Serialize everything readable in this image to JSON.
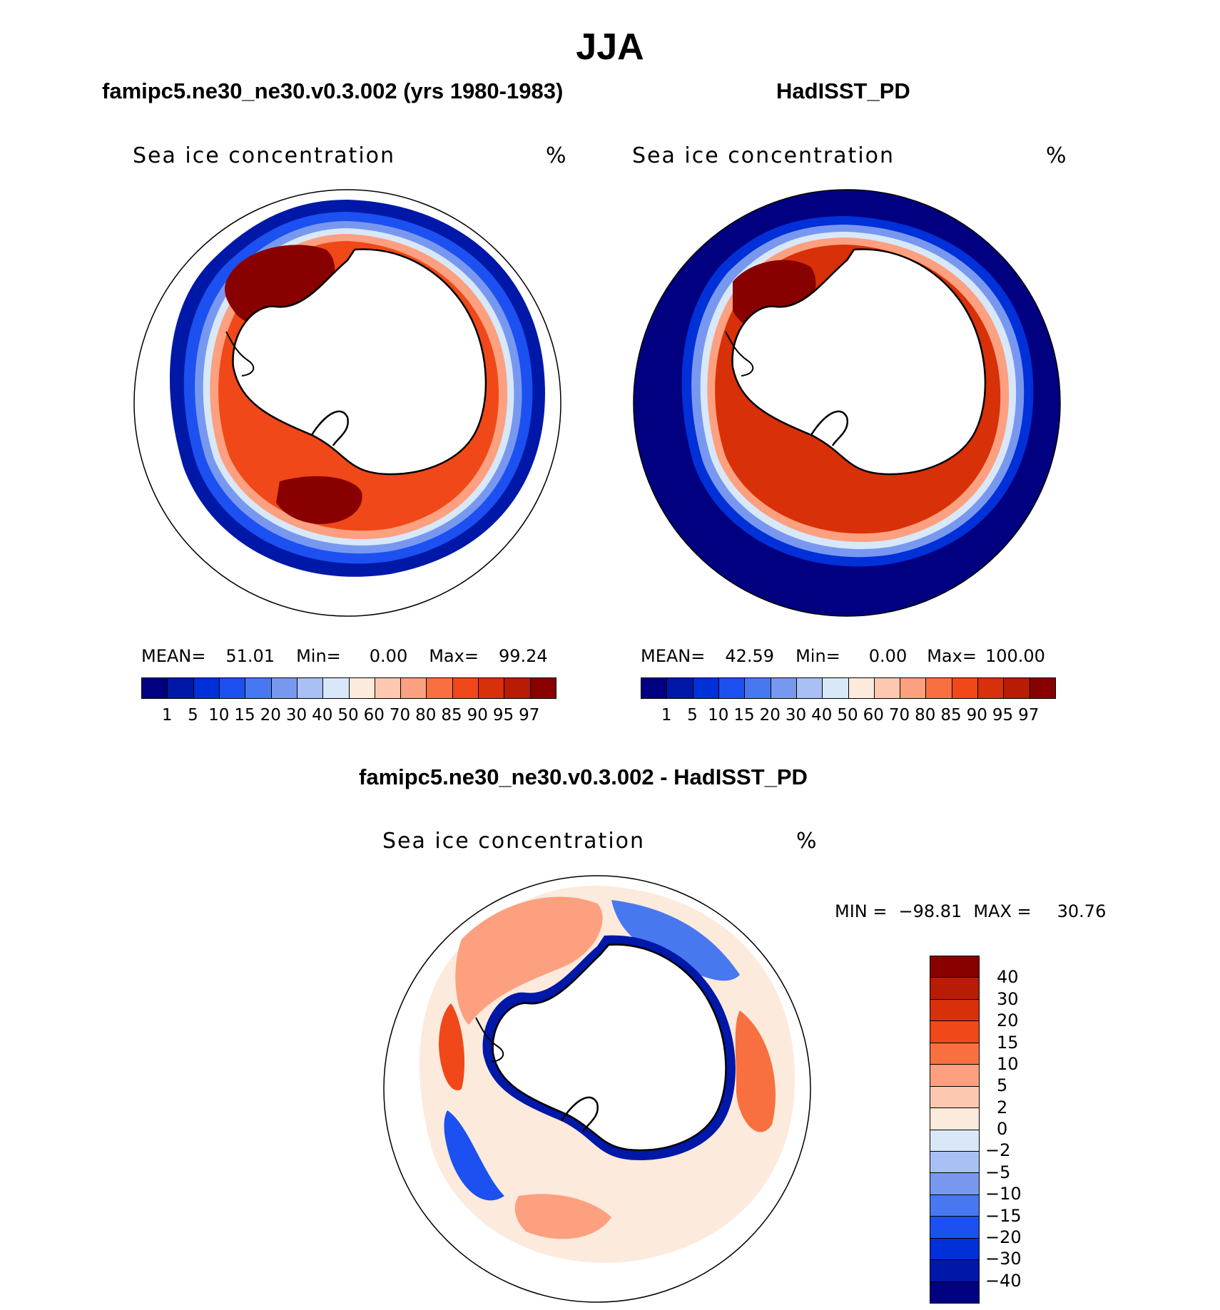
{
  "title": "JJA",
  "top_left": {
    "title": "famipc5.ne30_ne30.v0.3.002 (yrs 1980-1983)",
    "variable": "Sea ice concentration",
    "units": "%",
    "stats": {
      "mean_label": "MEAN=",
      "mean": "51.01",
      "min_label": "Min=",
      "min": "0.00",
      "max_label": "Max=",
      "max": "99.24"
    }
  },
  "top_right": {
    "title": "HadISST_PD",
    "variable": "Sea ice concentration",
    "units": "%",
    "stats": {
      "mean_label": "MEAN=",
      "mean": "42.59",
      "min_label": "Min=",
      "min": "0.00",
      "max_label": "Max=",
      "max": "100.00"
    }
  },
  "bottom": {
    "title": "famipc5.ne30_ne30.v0.3.002 - HadISST_PD",
    "variable": "Sea ice concentration",
    "units": "%",
    "minmax": {
      "min_label": "MIN =",
      "min": "−98.81",
      "max_label": "MAX =",
      "max": "30.76"
    }
  },
  "concentration_scale": {
    "ticks": [
      "1",
      "5",
      "10",
      "15",
      "20",
      "30",
      "40",
      "50",
      "60",
      "70",
      "80",
      "85",
      "90",
      "95",
      "97"
    ],
    "colors": [
      "#000080",
      "#0018a8",
      "#0030d8",
      "#1c50f0",
      "#4878f0",
      "#7898f0",
      "#a8c0f4",
      "#d8e8f8",
      "#fceadc",
      "#fcc8b0",
      "#fca080",
      "#f87040",
      "#f04818",
      "#d83008",
      "#b81c04",
      "#880000"
    ]
  },
  "difference_scale": {
    "ticks": [
      "40",
      "30",
      "20",
      "15",
      "10",
      "5",
      "2",
      "0",
      "−2",
      "−5",
      "−10",
      "−15",
      "−20",
      "−30",
      "−40"
    ],
    "colors": [
      "#880000",
      "#b81c04",
      "#d83008",
      "#f04818",
      "#f87040",
      "#fca080",
      "#fcc8b0",
      "#fceadc",
      "#d8e8f8",
      "#a8c0f4",
      "#7898f0",
      "#4878f0",
      "#1c50f0",
      "#0030d8",
      "#0018a8",
      "#000080"
    ]
  }
}
